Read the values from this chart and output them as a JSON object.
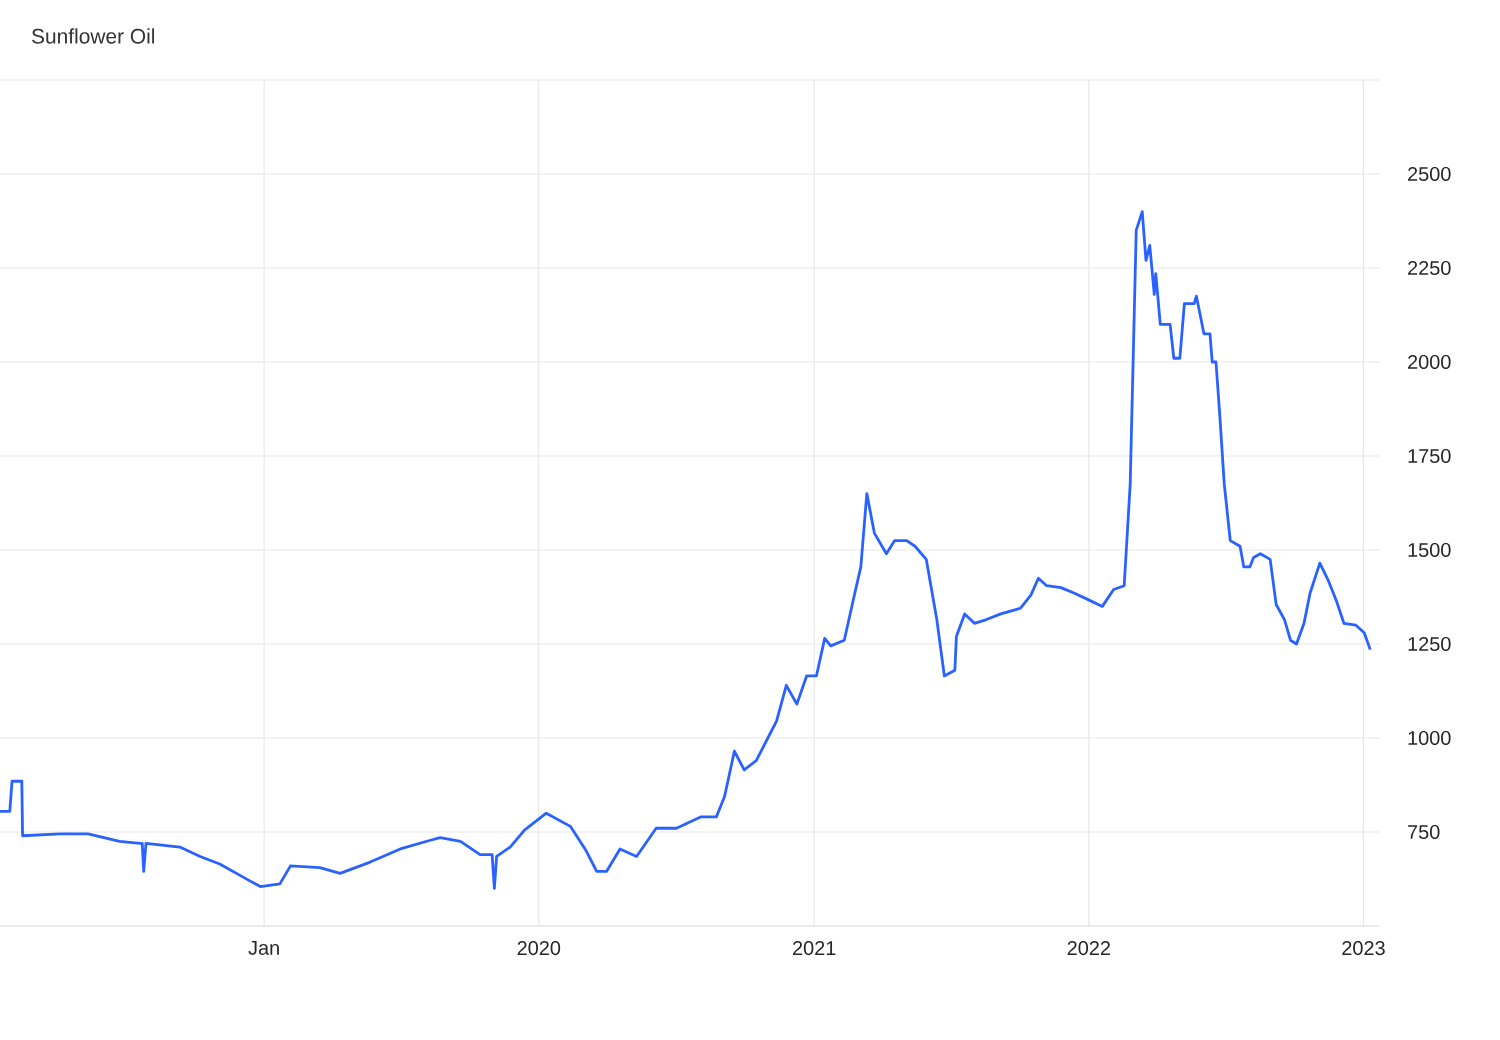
{
  "chart_data": {
    "type": "line",
    "title": "Sunflower Oil",
    "x": [
      "2018-01-15",
      "2018-01-28",
      "2018-01-31",
      "2018-02-13",
      "2018-02-14",
      "2018-04-05",
      "2018-05-12",
      "2018-06-23",
      "2018-07-20",
      "2018-07-23",
      "2018-07-25",
      "2018-07-28",
      "2018-09-11",
      "2018-10-08",
      "2018-11-03",
      "2018-12-13",
      "2018-12-27",
      "2019-01-22",
      "2019-02-05",
      "2019-03-16",
      "2019-04-12",
      "2019-05-22",
      "2019-07-01",
      "2019-08-10",
      "2019-08-23",
      "2019-09-19",
      "2019-10-15",
      "2019-10-31",
      "2019-11-03",
      "2019-11-06",
      "2019-11-24",
      "2019-12-13",
      "2020-01-11",
      "2020-02-12",
      "2020-03-04",
      "2020-03-18",
      "2020-03-31",
      "2020-04-18",
      "2020-05-10",
      "2020-06-05",
      "2020-07-02",
      "2020-08-03",
      "2020-08-24",
      "2020-09-04",
      "2020-09-17",
      "2020-09-30",
      "2020-10-16",
      "2020-11-12",
      "2020-11-25",
      "2020-12-09",
      "2020-12-22",
      "2021-01-04",
      "2021-01-15",
      "2021-01-23",
      "2021-02-10",
      "2021-02-24",
      "2021-03-04",
      "2021-03-12",
      "2021-03-22",
      "2021-04-07",
      "2021-04-18",
      "2021-05-04",
      "2021-05-15",
      "2021-05-30",
      "2021-06-13",
      "2021-06-23",
      "2021-07-07",
      "2021-07-09",
      "2021-07-20",
      "2021-08-02",
      "2021-08-18",
      "2021-09-06",
      "2021-10-02",
      "2021-10-16",
      "2021-10-26",
      "2021-11-06",
      "2021-11-25",
      "2021-12-13",
      "2021-12-29",
      "2022-01-19",
      "2022-02-03",
      "2022-02-17",
      "2022-02-25",
      "2022-03-05",
      "2022-03-13",
      "2022-03-18",
      "2022-03-23",
      "2022-03-29",
      "2022-03-31",
      "2022-04-06",
      "2022-04-19",
      "2022-04-24",
      "2022-05-02",
      "2022-05-08",
      "2022-05-21",
      "2022-05-24",
      "2022-06-03",
      "2022-06-11",
      "2022-06-14",
      "2022-06-19",
      "2022-06-24",
      "2022-06-30",
      "2022-07-08",
      "2022-07-21",
      "2022-07-26",
      "2022-08-03",
      "2022-08-08",
      "2022-08-17",
      "2022-08-30",
      "2022-09-07",
      "2022-09-18",
      "2022-09-26",
      "2022-10-04",
      "2022-10-14",
      "2022-10-22",
      "2022-11-04",
      "2022-11-15",
      "2022-11-26",
      "2022-12-06",
      "2022-12-22",
      "2023-01-02",
      "2023-01-10"
    ],
    "series": [
      {
        "color": "#2962ff",
        "values": [
          805,
          805,
          885,
          885,
          740,
          745,
          745,
          725,
          720,
          720,
          645,
          720,
          710,
          685,
          665,
          620,
          605,
          612,
          660,
          655,
          640,
          670,
          705,
          728,
          735,
          725,
          690,
          690,
          600,
          685,
          710,
          755,
          800,
          765,
          700,
          645,
          645,
          705,
          685,
          760,
          760,
          790,
          790,
          845,
          965,
          915,
          940,
          1045,
          1140,
          1090,
          1165,
          1165,
          1265,
          1245,
          1260,
          1385,
          1455,
          1650,
          1545,
          1490,
          1525,
          1525,
          1510,
          1475,
          1315,
          1165,
          1180,
          1270,
          1330,
          1305,
          1315,
          1330,
          1345,
          1380,
          1425,
          1405,
          1400,
          1385,
          1370,
          1350,
          1395,
          1405,
          1675,
          2350,
          2400,
          2270,
          2310,
          2180,
          2235,
          2100,
          2100,
          2010,
          2010,
          2155,
          2155,
          2175,
          2075,
          2075,
          2000,
          2000,
          1860,
          1675,
          1525,
          1510,
          1455,
          1455,
          1480,
          1490,
          1475,
          1355,
          1315,
          1260,
          1250,
          1305,
          1385,
          1465,
          1420,
          1365,
          1305,
          1300,
          1280,
          1235
        ]
      }
    ],
    "xlim": [
      "2018-01-15",
      "2023-01-23"
    ],
    "xticks": [
      {
        "value": "2019-01-01",
        "label": "Jan"
      },
      {
        "value": "2020-01-01",
        "label": "2020"
      },
      {
        "value": "2021-01-01",
        "label": "2021"
      },
      {
        "value": "2022-01-01",
        "label": "2022"
      },
      {
        "value": "2023-01-01",
        "label": "2023"
      }
    ],
    "ylim": [
      500,
      2750
    ],
    "yticks": [
      750,
      1000,
      1250,
      1500,
      1750,
      2000,
      2250,
      2500,
      {
        "value": 2750,
        "label": null
      }
    ],
    "grid": true,
    "marker": "none",
    "line_style": "solid"
  }
}
